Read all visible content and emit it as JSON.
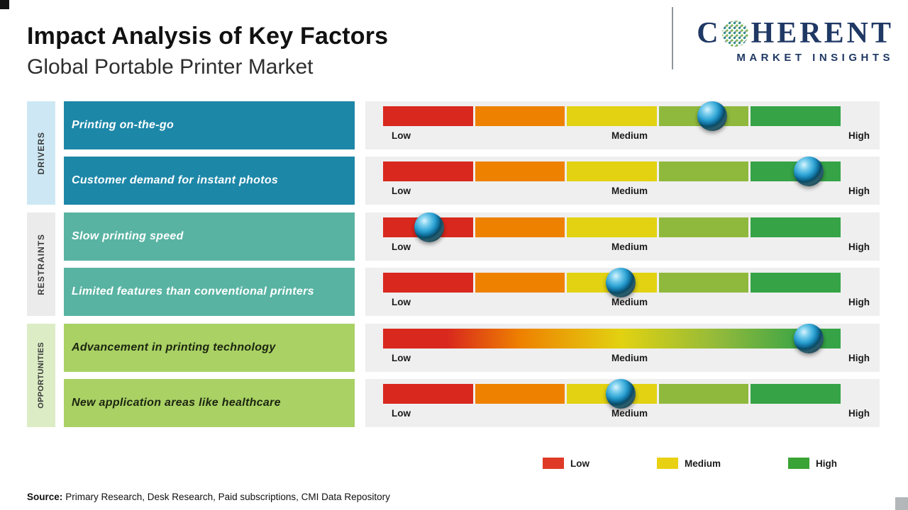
{
  "header": {
    "title": "Impact Analysis of Key Factors",
    "subtitle": "Global Portable Printer Market"
  },
  "logo": {
    "name_prefix": "C",
    "name_suffix": "HERENT",
    "tagline": "MARKET INSIGHTS"
  },
  "scale": {
    "labels": [
      "Low",
      "Medium",
      "High"
    ]
  },
  "groups": [
    {
      "label": "DRIVERS",
      "rows": [
        {
          "factor": "Printing on-the-go",
          "position": 0.72
        },
        {
          "factor": "Customer demand for instant photos",
          "position": 0.93
        }
      ]
    },
    {
      "label": "RESTRAINTS",
      "rows": [
        {
          "factor": "Slow printing speed",
          "position": 0.1
        },
        {
          "factor": "Limited features than conventional printers",
          "position": 0.52
        }
      ]
    },
    {
      "label": "OPPORTUNITIES",
      "rows": [
        {
          "factor": "Advancement in printing technology",
          "position": 0.93
        },
        {
          "factor": "New application areas like healthcare",
          "position": 0.52
        }
      ]
    }
  ],
  "legend": {
    "items": [
      {
        "label": "Low",
        "color": "#df3a26"
      },
      {
        "label": "Medium",
        "color": "#e8d013"
      },
      {
        "label": "High",
        "color": "#3aa335"
      }
    ]
  },
  "source": {
    "label": "Source:",
    "text": "Primary Research, Desk Research, Paid subscriptions, CMI Data Repository"
  },
  "colors": {
    "title_text": "#111111",
    "logo_navy": "#1f3864",
    "driver_row": "#1d87a8",
    "driver_strip": "#cde8f4",
    "restraint_row": "#58b3a2",
    "restraint_strip": "#ebebeb",
    "opportunity_row": "#a9d164",
    "opportunity_strip": "#dcedc6",
    "panel_bg": "#efefef",
    "scale_red": "#d9281e",
    "scale_orange": "#ee8100",
    "scale_yellow": "#e2d211",
    "scale_yellowgreen": "#8fb93c",
    "scale_green": "#35a346"
  },
  "chart_data": {
    "type": "table",
    "title": "Impact Analysis of Key Factors",
    "subtitle": "Global Portable Printer Market",
    "scale": {
      "tick_labels": [
        "Low",
        "Medium",
        "High"
      ],
      "range": [
        0,
        1
      ]
    },
    "rows": [
      {
        "category": "DRIVERS",
        "factor": "Printing on-the-go",
        "impact_position": 0.72,
        "impact_level": "Medium-High"
      },
      {
        "category": "DRIVERS",
        "factor": "Customer demand for instant photos",
        "impact_position": 0.93,
        "impact_level": "High"
      },
      {
        "category": "RESTRAINTS",
        "factor": "Slow printing speed",
        "impact_position": 0.1,
        "impact_level": "Low"
      },
      {
        "category": "RESTRAINTS",
        "factor": "Limited features than conventional printers",
        "impact_position": 0.52,
        "impact_level": "Medium"
      },
      {
        "category": "OPPORTUNITIES",
        "factor": "Advancement in printing technology",
        "impact_position": 0.93,
        "impact_level": "High"
      },
      {
        "category": "OPPORTUNITIES",
        "factor": "New application areas like healthcare",
        "impact_position": 0.52,
        "impact_level": "Medium"
      }
    ],
    "legend": [
      "Low",
      "Medium",
      "High"
    ],
    "legend_position": "bottom-right",
    "source": "Primary Research, Desk Research, Paid subscriptions, CMI Data Repository"
  }
}
